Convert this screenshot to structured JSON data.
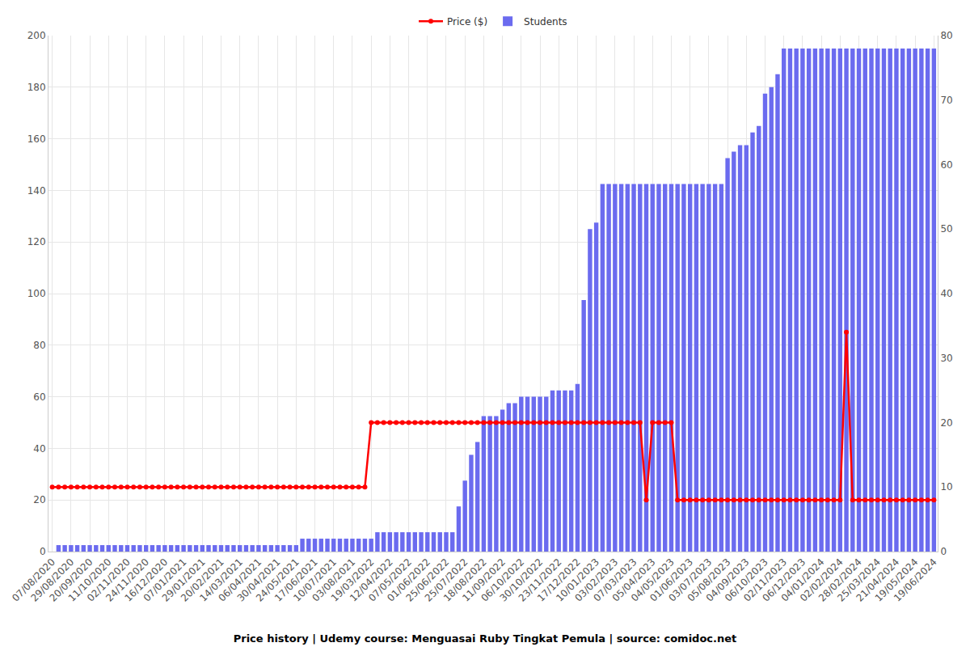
{
  "chart_data": {
    "type": "bar",
    "title": "Price history | Udemy course: Menguasai Ruby Tingkat Pemula | source: comidoc.net",
    "categories": [
      "07/08/2020",
      null,
      null,
      "29/08/2020",
      null,
      null,
      "20/09/2020",
      null,
      null,
      "11/10/2020",
      null,
      null,
      "02/11/2020",
      null,
      null,
      "24/11/2020",
      null,
      null,
      "16/12/2020",
      null,
      null,
      "07/01/2021",
      null,
      null,
      "29/01/2021",
      null,
      null,
      "20/02/2021",
      null,
      null,
      "14/03/2021",
      null,
      null,
      "06/04/2021",
      null,
      null,
      "30/04/2021",
      null,
      null,
      "24/05/2021",
      null,
      null,
      "17/06/2021",
      null,
      null,
      "10/07/2021",
      null,
      null,
      "03/08/2021",
      null,
      null,
      "19/03/2022",
      null,
      null,
      "12/04/2022",
      null,
      null,
      "07/05/2022",
      null,
      null,
      "01/06/2022",
      null,
      null,
      "25/06/2022",
      null,
      null,
      "25/07/2022",
      null,
      null,
      "18/08/2022",
      null,
      null,
      "11/09/2022",
      null,
      null,
      "06/10/2022",
      null,
      null,
      "30/10/2022",
      null,
      null,
      "23/11/2022",
      null,
      null,
      "17/12/2022",
      null,
      null,
      "10/01/2023",
      null,
      null,
      "03/02/2023",
      null,
      null,
      "07/03/2023",
      null,
      null,
      "05/04/2023",
      null,
      null,
      "04/05/2023",
      null,
      null,
      "01/06/2023",
      null,
      null,
      "03/07/2023",
      null,
      null,
      "05/08/2023",
      null,
      null,
      "04/09/2023",
      null,
      null,
      "06/10/2023",
      null,
      null,
      "02/11/2023",
      null,
      null,
      "06/12/2023",
      null,
      null,
      "04/01/2024",
      null,
      null,
      "02/02/2024",
      null,
      null,
      "28/02/2024",
      null,
      null,
      "25/03/2024",
      null,
      null,
      "21/04/2024",
      null,
      null,
      "19/05/2024",
      null,
      null,
      "19/06/2024"
    ],
    "series": [
      {
        "name": "Price ($)",
        "type": "line",
        "color": "#ff0000",
        "marker": "circle",
        "values": [
          25,
          25,
          25,
          25,
          25,
          25,
          25,
          25,
          25,
          25,
          25,
          25,
          25,
          25,
          25,
          25,
          25,
          25,
          25,
          25,
          25,
          25,
          25,
          25,
          25,
          25,
          25,
          25,
          25,
          25,
          25,
          25,
          25,
          25,
          25,
          25,
          25,
          25,
          25,
          25,
          25,
          25,
          25,
          25,
          25,
          25,
          25,
          25,
          25,
          25,
          25,
          50,
          50,
          50,
          50,
          50,
          50,
          50,
          50,
          50,
          50,
          50,
          50,
          50,
          50,
          50,
          50,
          50,
          50,
          50,
          50,
          50,
          50,
          50,
          50,
          50,
          50,
          50,
          50,
          50,
          50,
          50,
          50,
          50,
          50,
          50,
          50,
          50,
          50,
          50,
          50,
          50,
          50,
          50,
          50,
          20,
          50,
          50,
          50,
          50,
          20,
          20,
          20,
          20,
          20,
          20,
          20,
          20,
          20,
          20,
          20,
          20,
          20,
          20,
          20,
          20,
          20,
          20,
          20,
          20,
          20,
          20,
          20,
          20,
          20,
          20,
          20,
          85,
          20,
          20,
          20,
          20,
          20,
          20,
          20,
          20,
          20,
          20,
          20,
          20,
          20,
          20
        ]
      },
      {
        "name": "Students",
        "type": "bar",
        "color": "#6b6bef",
        "axis": "y2",
        "values": [
          0,
          1,
          1,
          1,
          1,
          1,
          1,
          1,
          1,
          1,
          1,
          1,
          1,
          1,
          1,
          1,
          1,
          1,
          1,
          1,
          1,
          1,
          1,
          1,
          1,
          1,
          1,
          1,
          1,
          1,
          1,
          1,
          1,
          1,
          1,
          1,
          1,
          1,
          1,
          1,
          2,
          2,
          2,
          2,
          2,
          2,
          2,
          2,
          2,
          2,
          2,
          2,
          3,
          3,
          3,
          3,
          3,
          3,
          3,
          3,
          3,
          3,
          3,
          3,
          3,
          7,
          11,
          15,
          17,
          21,
          21,
          21,
          22,
          23,
          23,
          24,
          24,
          24,
          24,
          24,
          25,
          25,
          25,
          25,
          26,
          39,
          50,
          51,
          57,
          57,
          57,
          57,
          57,
          57,
          57,
          57,
          57,
          57,
          57,
          57,
          57,
          57,
          57,
          57,
          57,
          57,
          57,
          57,
          61,
          62,
          63,
          63,
          65,
          66,
          71,
          72,
          74,
          78,
          78,
          78,
          78,
          78,
          78,
          78,
          78,
          78,
          78,
          78,
          78,
          78,
          78,
          78,
          78,
          78,
          78,
          78,
          78,
          78,
          78,
          78,
          78,
          78
        ]
      }
    ],
    "ylim": [
      0,
      200
    ],
    "yticks": [
      0,
      20,
      40,
      60,
      80,
      100,
      120,
      140,
      160,
      180,
      200
    ],
    "y2lim": [
      0,
      80
    ],
    "y2ticks": [
      0,
      10,
      20,
      30,
      40,
      50,
      60,
      70,
      80
    ],
    "grid": true,
    "legend": "top"
  }
}
